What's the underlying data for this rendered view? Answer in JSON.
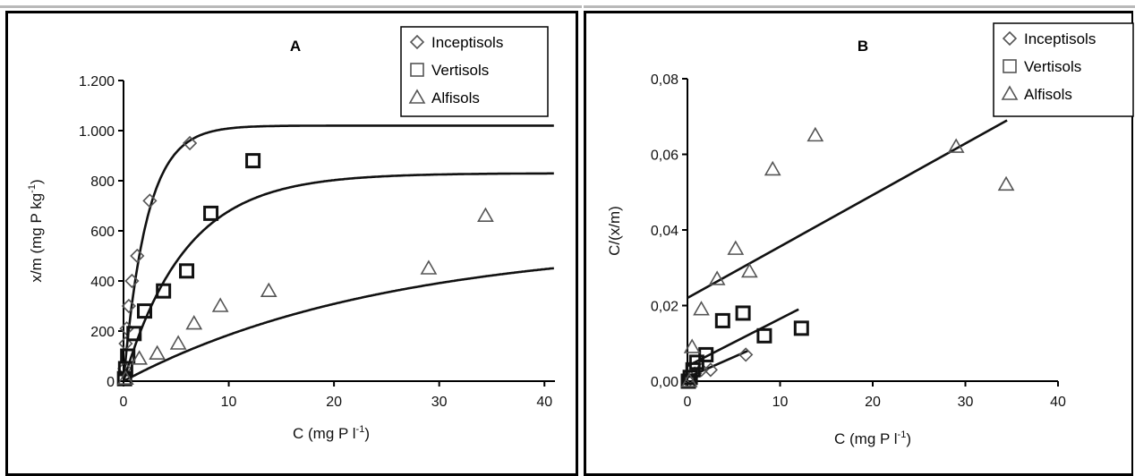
{
  "chart_data": [
    {
      "panel": "A",
      "type": "scatter",
      "title": "A",
      "xlabel": "C (mg P l",
      "xlabel_sup": "-1",
      "xlabel_end": ")",
      "ylabel": "x/m (mg P kg",
      "ylabel_sup": "-1",
      "ylabel_end": ")",
      "xlim": [
        0,
        41
      ],
      "ylim": [
        0,
        1200
      ],
      "x_ticks": [
        0,
        10,
        20,
        30,
        40
      ],
      "y_ticks": [
        0,
        200,
        400,
        600,
        800,
        1000,
        1200
      ],
      "y_tick_labels": [
        "0",
        "200",
        "400",
        "600",
        "800",
        "1.000",
        "1.200"
      ],
      "legend": [
        "Inceptisols",
        "Vertisols",
        "Alfisols"
      ],
      "legend_placement": "top-right",
      "series": [
        {
          "name": "Inceptisols",
          "marker": "diamond",
          "points": [
            [
              0.1,
              50
            ],
            [
              0.2,
              150
            ],
            [
              0.3,
              210
            ],
            [
              0.5,
              300
            ],
            [
              0.8,
              400
            ],
            [
              1.3,
              500
            ],
            [
              2.5,
              720
            ],
            [
              6.3,
              950
            ]
          ]
        },
        {
          "name": "Vertisols",
          "marker": "square",
          "points": [
            [
              0.1,
              10
            ],
            [
              0.2,
              50
            ],
            [
              0.4,
              100
            ],
            [
              1.0,
              190
            ],
            [
              2.0,
              280
            ],
            [
              3.8,
              360
            ],
            [
              6.0,
              440
            ],
            [
              8.3,
              670
            ],
            [
              12.3,
              880
            ]
          ]
        },
        {
          "name": "Alfisols",
          "marker": "triangle",
          "points": [
            [
              0.2,
              10
            ],
            [
              1.5,
              90
            ],
            [
              3.2,
              110
            ],
            [
              5.2,
              150
            ],
            [
              6.7,
              230
            ],
            [
              9.2,
              300
            ],
            [
              13.8,
              360
            ],
            [
              29.0,
              450
            ],
            [
              34.4,
              660
            ]
          ]
        }
      ],
      "fits": [
        {
          "name": "Inceptisols",
          "xmax": 41,
          "plateau": 1020,
          "k": 0.45
        },
        {
          "name": "Vertisols",
          "xmax": 41,
          "plateau": 830,
          "k": 0.17
        },
        {
          "name": "Alfisols",
          "xmax": 41,
          "plateau": 560,
          "k": 0.04
        }
      ]
    },
    {
      "panel": "B",
      "type": "scatter",
      "title": "B",
      "xlabel": "C (mg P l",
      "xlabel_sup": "-1",
      "xlabel_end": ")",
      "ylabel": "C/(x/m)",
      "xlim": [
        0,
        40
      ],
      "ylim": [
        0,
        0.08
      ],
      "x_ticks": [
        0,
        10,
        20,
        30,
        40
      ],
      "y_ticks": [
        0,
        0.02,
        0.04,
        0.06,
        0.08
      ],
      "y_tick_labels": [
        "0,00",
        "0,02",
        "0,04",
        "0,06",
        "0,08"
      ],
      "legend": [
        "Inceptisols",
        "Vertisols",
        "Alfisols"
      ],
      "legend_placement": "top-right",
      "series": [
        {
          "name": "Inceptisols",
          "marker": "diamond",
          "points": [
            [
              0.1,
              0.0
            ],
            [
              0.3,
              0.001
            ],
            [
              0.8,
              0.002
            ],
            [
              1.5,
              0.003
            ],
            [
              2.5,
              0.003
            ],
            [
              6.3,
              0.007
            ]
          ]
        },
        {
          "name": "Vertisols",
          "marker": "square",
          "points": [
            [
              0.1,
              0.0
            ],
            [
              0.3,
              0.001
            ],
            [
              0.6,
              0.003
            ],
            [
              1.0,
              0.005
            ],
            [
              2.0,
              0.007
            ],
            [
              3.8,
              0.016
            ],
            [
              6.0,
              0.018
            ],
            [
              8.3,
              0.012
            ],
            [
              12.3,
              0.014
            ]
          ]
        },
        {
          "name": "Alfisols",
          "marker": "triangle",
          "points": [
            [
              0.2,
              0.0
            ],
            [
              0.5,
              0.009
            ],
            [
              1.5,
              0.019
            ],
            [
              3.2,
              0.027
            ],
            [
              5.2,
              0.035
            ],
            [
              6.7,
              0.029
            ],
            [
              9.2,
              0.056
            ],
            [
              13.8,
              0.065
            ],
            [
              29.0,
              0.062
            ],
            [
              34.4,
              0.052
            ]
          ]
        }
      ],
      "fits": [
        {
          "name": "Alfisols",
          "x0": 0,
          "y0": 0.022,
          "x1": 34.5,
          "y1": 0.069
        },
        {
          "name": "Vertisols",
          "x0": 0,
          "y0": 0.004,
          "x1": 12,
          "y1": 0.019
        },
        {
          "name": "Inceptisols",
          "x0": 0,
          "y0": 0.001,
          "x1": 6.5,
          "y1": 0.008
        }
      ]
    }
  ]
}
